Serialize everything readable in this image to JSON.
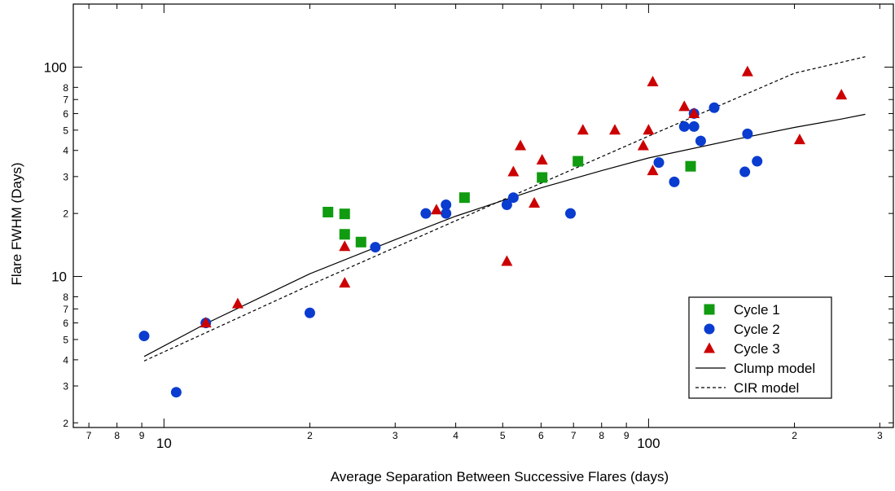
{
  "chart_data": {
    "type": "scatter",
    "title": "",
    "xlabel": "Average Separation Between Successive Flares (days)",
    "ylabel": "Flare FWHM (Days)",
    "xscale": "log",
    "yscale": "log",
    "xlim": [
      6.5,
      320
    ],
    "ylim": [
      1.9,
      200
    ],
    "x_major_ticks": [
      {
        "value": 10,
        "label": "10"
      },
      {
        "value": 100,
        "label": "100"
      }
    ],
    "x_minor_ticks": [
      {
        "value": 7,
        "label": "7"
      },
      {
        "value": 8,
        "label": "8"
      },
      {
        "value": 9,
        "label": "9"
      },
      {
        "value": 20,
        "label": "2"
      },
      {
        "value": 30,
        "label": "3"
      },
      {
        "value": 40,
        "label": "4"
      },
      {
        "value": 50,
        "label": "5"
      },
      {
        "value": 60,
        "label": "6"
      },
      {
        "value": 70,
        "label": "7"
      },
      {
        "value": 80,
        "label": "8"
      },
      {
        "value": 90,
        "label": "9"
      },
      {
        "value": 200,
        "label": "2"
      },
      {
        "value": 300,
        "label": "3"
      }
    ],
    "y_major_ticks": [
      {
        "value": 10,
        "label": "10"
      },
      {
        "value": 100,
        "label": "100"
      }
    ],
    "y_minor_ticks": [
      {
        "value": 2,
        "label": "2"
      },
      {
        "value": 3,
        "label": "3"
      },
      {
        "value": 4,
        "label": "4"
      },
      {
        "value": 5,
        "label": "5"
      },
      {
        "value": 6,
        "label": "6"
      },
      {
        "value": 7,
        "label": "7"
      },
      {
        "value": 8,
        "label": "8"
      },
      {
        "value": 20,
        "label": "2"
      },
      {
        "value": 30,
        "label": "3"
      },
      {
        "value": 40,
        "label": "4"
      },
      {
        "value": 50,
        "label": "5"
      },
      {
        "value": 60,
        "label": "6"
      },
      {
        "value": 70,
        "label": "7"
      },
      {
        "value": 80,
        "label": "8"
      }
    ],
    "legend_position": "bottom-right",
    "series": [
      {
        "name": "Cycle 1",
        "marker": "square",
        "color": "#109b10",
        "points": [
          [
            21.8,
            20.3
          ],
          [
            23.6,
            19.9
          ],
          [
            23.6,
            15.9
          ],
          [
            25.5,
            14.6
          ],
          [
            41.7,
            23.8
          ],
          [
            60.3,
            29.7
          ],
          [
            71.5,
            35.5
          ],
          [
            122.1,
            33.6
          ]
        ]
      },
      {
        "name": "Cycle 2",
        "marker": "circle",
        "color": "#0a3ccf",
        "points": [
          [
            9.1,
            5.2
          ],
          [
            10.6,
            2.8
          ],
          [
            12.2,
            6.0
          ],
          [
            20.0,
            6.7
          ],
          [
            27.3,
            13.8
          ],
          [
            34.7,
            20.0
          ],
          [
            38.2,
            22.0
          ],
          [
            38.2,
            20.0
          ],
          [
            51.0,
            22.0
          ],
          [
            52.6,
            23.8
          ],
          [
            69.0,
            20.0
          ],
          [
            105.0,
            35.0
          ],
          [
            113.0,
            28.3
          ],
          [
            118.5,
            52.0
          ],
          [
            124.1,
            60.0
          ],
          [
            124.1,
            52.0
          ],
          [
            128.1,
            44.4
          ],
          [
            136.6,
            64.0
          ],
          [
            160.0,
            48.0
          ],
          [
            158.0,
            31.6
          ],
          [
            167.5,
            35.5
          ]
        ]
      },
      {
        "name": "Cycle 3",
        "marker": "triangle",
        "color": "#cc0000",
        "points": [
          [
            12.2,
            6.0
          ],
          [
            14.2,
            7.4
          ],
          [
            23.6,
            13.9
          ],
          [
            23.6,
            9.3
          ],
          [
            36.5,
            20.8
          ],
          [
            51.0,
            11.8
          ],
          [
            52.6,
            31.6
          ],
          [
            54.4,
            42.1
          ],
          [
            58.1,
            22.4
          ],
          [
            60.3,
            36.0
          ],
          [
            73.2,
            50.0
          ],
          [
            85.2,
            50.0
          ],
          [
            97.5,
            42.1
          ],
          [
            100.0,
            50.0
          ],
          [
            102.0,
            32.0
          ],
          [
            102.0,
            85.0
          ],
          [
            118.5,
            64.8
          ],
          [
            124.1,
            60.0
          ],
          [
            160.0,
            95.0
          ],
          [
            205.0,
            45.0
          ],
          [
            250.0,
            73.6
          ]
        ]
      }
    ],
    "lines": [
      {
        "name": "Clump model",
        "style": "solid",
        "color": "#000000",
        "points": [
          [
            9.1,
            4.15
          ],
          [
            12.2,
            5.95
          ],
          [
            20,
            10.3
          ],
          [
            30,
            15.0
          ],
          [
            40,
            19.4
          ],
          [
            60,
            26.5
          ],
          [
            80,
            32.0
          ],
          [
            100,
            36.8
          ],
          [
            150,
            45.0
          ],
          [
            200,
            51.5
          ],
          [
            250,
            56.5
          ],
          [
            280,
            59.5
          ]
        ]
      },
      {
        "name": "CIR model",
        "style": "dashed",
        "color": "#000000",
        "points": [
          [
            9.1,
            3.95
          ],
          [
            20,
            9.1
          ],
          [
            50,
            23.2
          ],
          [
            100,
            46.8
          ],
          [
            200,
            93.5
          ],
          [
            280,
            112.0
          ]
        ]
      }
    ]
  }
}
